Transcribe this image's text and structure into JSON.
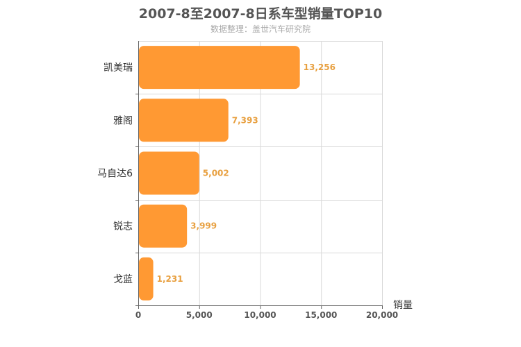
{
  "title": "2007-8至2007-8日系车型销量TOP10",
  "subtitle": "数据整理：盖世汽车研究院",
  "colors": {
    "bar": "#FF9933",
    "value_label": "#E8A040",
    "grid": "#d9d9d9",
    "axis": "#666666",
    "tick_text": "#555555",
    "category_text": "#333333"
  },
  "chart_data": {
    "type": "bar",
    "orientation": "horizontal",
    "categories": [
      "凯美瑞",
      "雅阁",
      "马自达6",
      "锐志",
      "戈蓝"
    ],
    "values": [
      13256,
      7393,
      5002,
      3999,
      1231
    ],
    "value_labels": [
      "13,256",
      "7,393",
      "5,002",
      "3,999",
      "1,231"
    ],
    "xlabel": "销量",
    "ylabel": "",
    "xlim": [
      0,
      20000
    ],
    "xticks": [
      0,
      5000,
      10000,
      15000,
      20000
    ],
    "xtick_labels": [
      "0",
      "5,000",
      "10,000",
      "15,000",
      "20,000"
    ],
    "grid": true,
    "legend": "none"
  }
}
